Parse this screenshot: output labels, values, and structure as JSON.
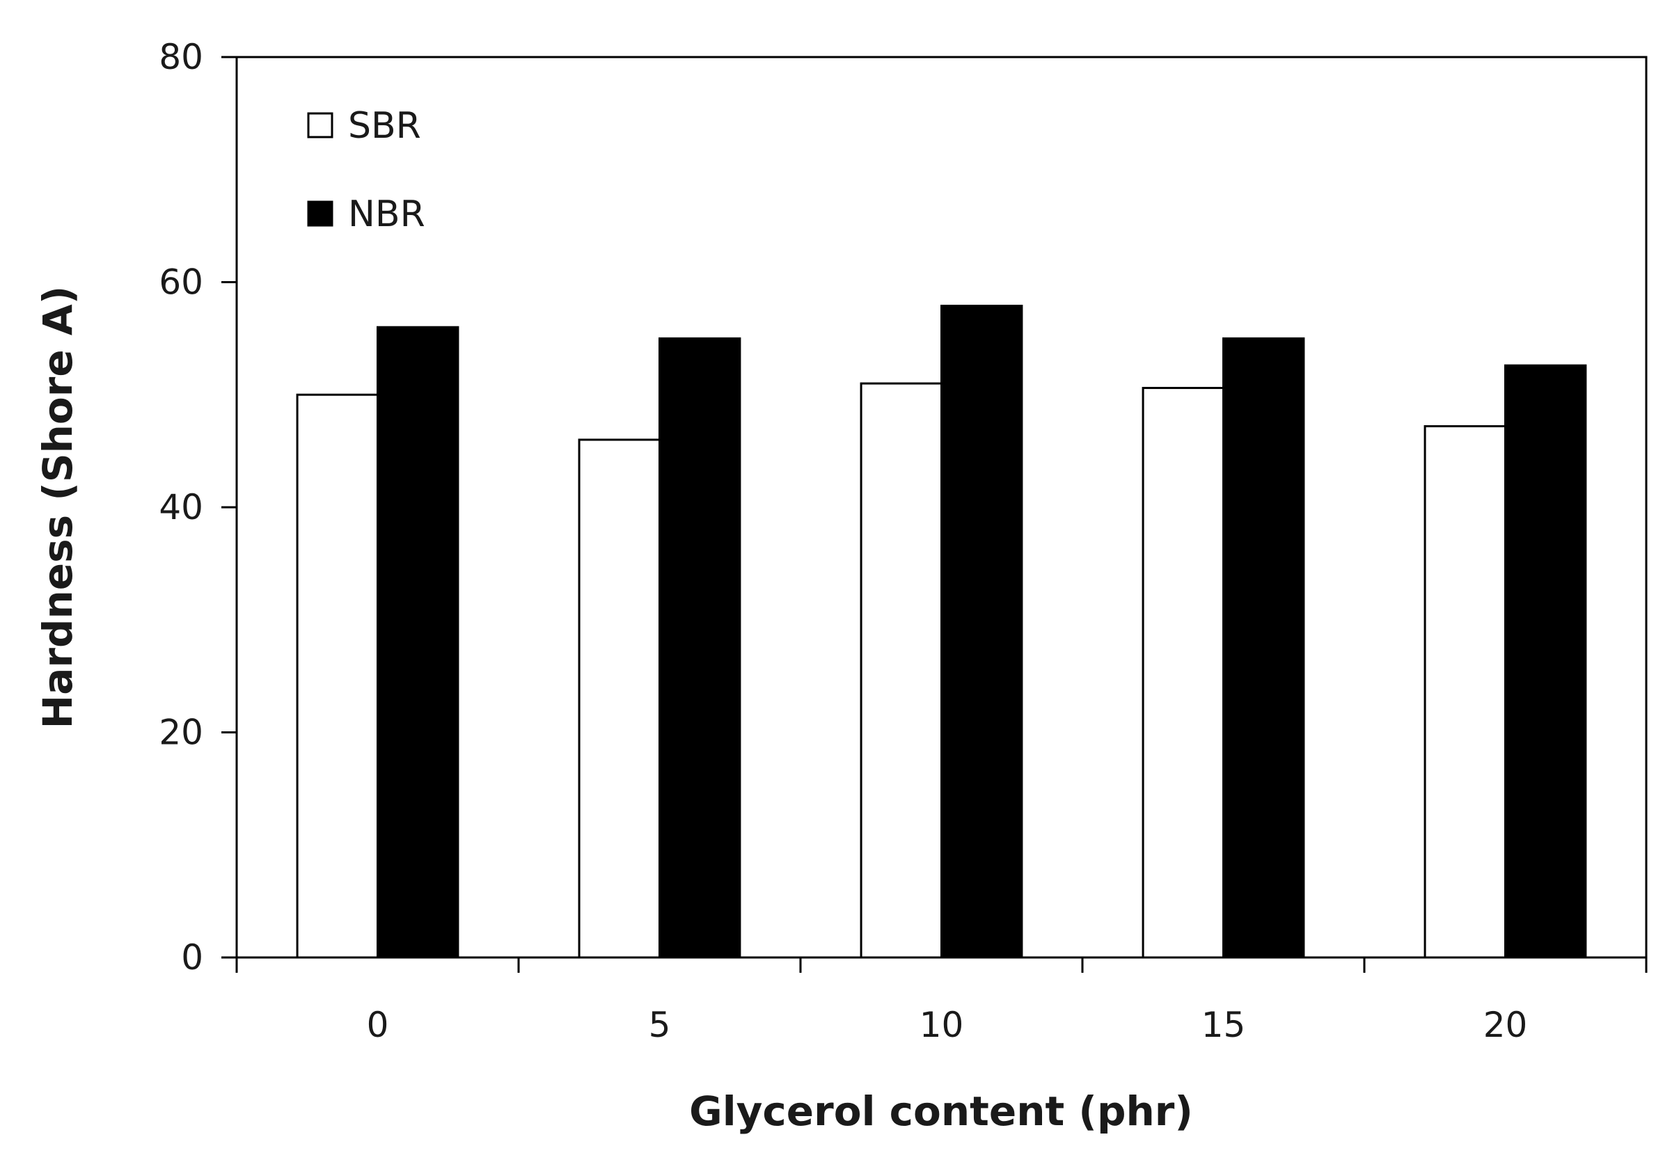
{
  "chart_data": {
    "type": "bar",
    "title": "",
    "xlabel": "Glycerol content (phr)",
    "ylabel": "Hardness (Shore A)",
    "categories": [
      "0",
      "5",
      "10",
      "15",
      "20"
    ],
    "ylim": [
      0,
      80
    ],
    "yticks": [
      "0",
      "20",
      "40",
      "60",
      "80"
    ],
    "grid": false,
    "legend_position": "top-left",
    "series": [
      {
        "name": "SBR",
        "values": [
          50,
          46,
          51,
          50.6,
          47.2
        ],
        "fill": "#ffffff",
        "stroke": "#000000"
      },
      {
        "name": "NBR",
        "values": [
          56,
          55,
          57.9,
          55,
          52.6
        ],
        "fill": "#000000",
        "stroke": "#000000"
      }
    ]
  }
}
